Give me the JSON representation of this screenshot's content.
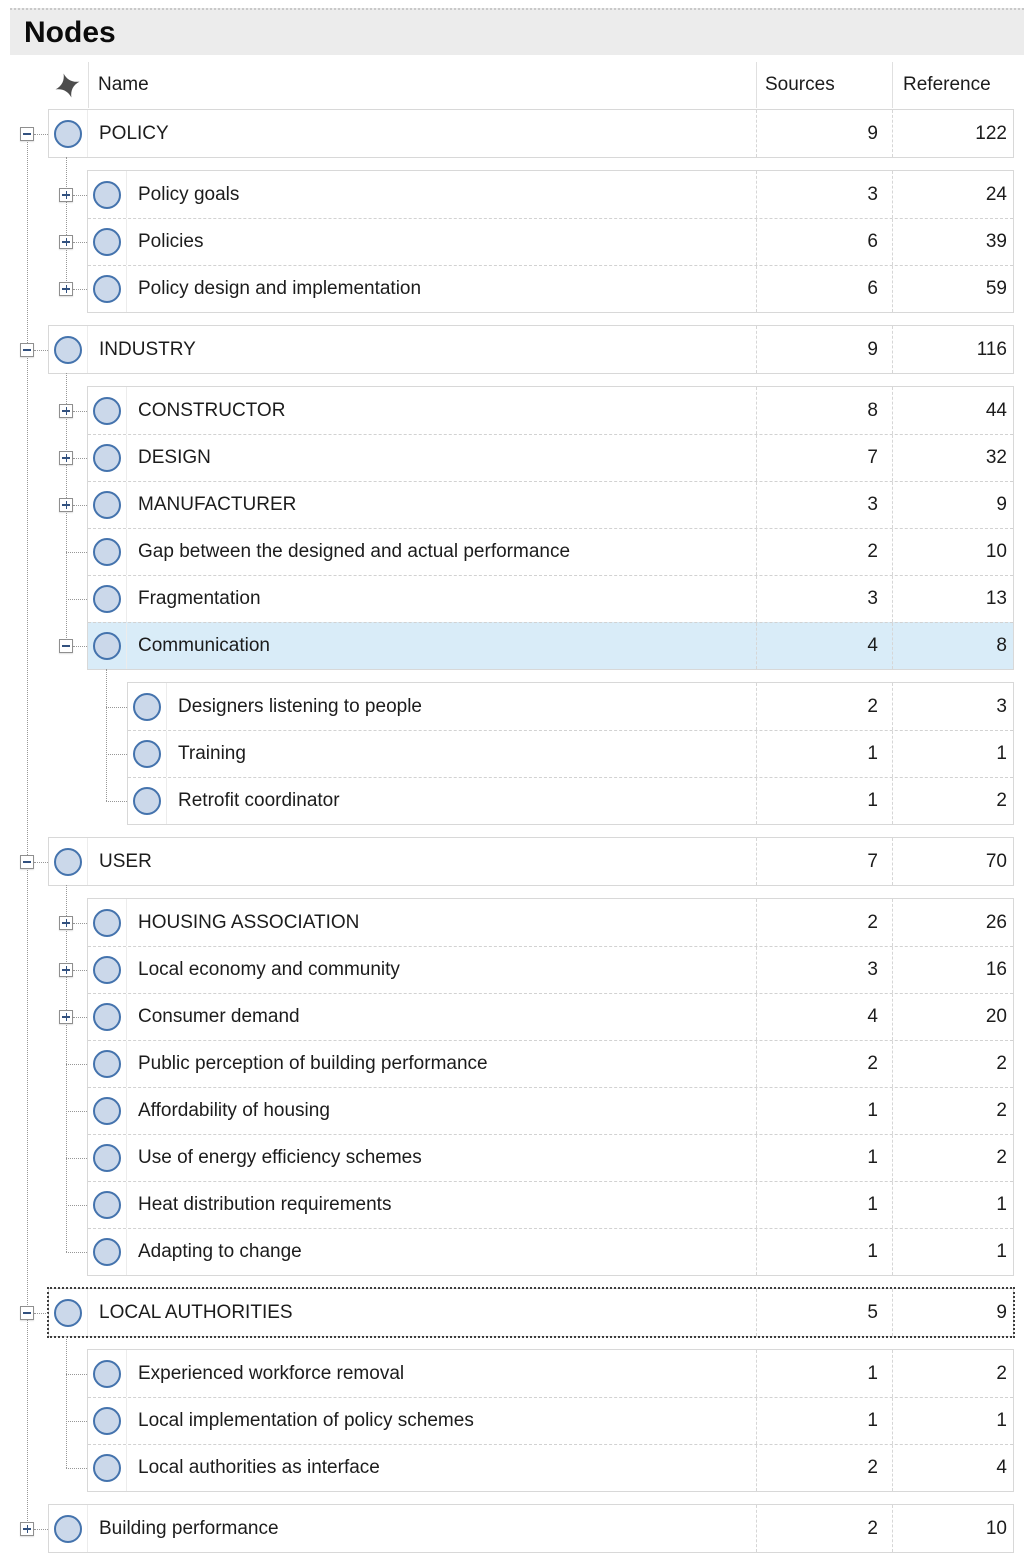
{
  "title": "Nodes",
  "columns": {
    "name": "Name",
    "sources": "Sources",
    "reference": "Reference"
  },
  "header_icon": "pin-star-icon",
  "colors": {
    "selected_row": "#d9ecf8",
    "node_fill": "#cbd8ea",
    "node_border": "#4473ad",
    "title_bg": "#ececec"
  },
  "rows": [
    {
      "name": "POLICY",
      "sources": 9,
      "reference": 122,
      "level": 1,
      "expander": "minus"
    },
    {
      "name": "Policy goals",
      "sources": 3,
      "reference": 24,
      "level": 2,
      "expander": "plus"
    },
    {
      "name": "Policies",
      "sources": 6,
      "reference": 39,
      "level": 2,
      "expander": "plus"
    },
    {
      "name": "Policy design and implementation",
      "sources": 6,
      "reference": 59,
      "level": 2,
      "expander": "plus"
    },
    {
      "name": "INDUSTRY",
      "sources": 9,
      "reference": 116,
      "level": 1,
      "expander": "minus"
    },
    {
      "name": "CONSTRUCTOR",
      "sources": 8,
      "reference": 44,
      "level": 2,
      "expander": "plus"
    },
    {
      "name": "DESIGN",
      "sources": 7,
      "reference": 32,
      "level": 2,
      "expander": "plus"
    },
    {
      "name": "MANUFACTURER",
      "sources": 3,
      "reference": 9,
      "level": 2,
      "expander": "plus"
    },
    {
      "name": "Gap between the designed and actual performance",
      "sources": 2,
      "reference": 10,
      "level": 2,
      "expander": "none"
    },
    {
      "name": "Fragmentation",
      "sources": 3,
      "reference": 13,
      "level": 2,
      "expander": "none"
    },
    {
      "name": "Communication",
      "sources": 4,
      "reference": 8,
      "level": 2,
      "expander": "minus",
      "selected": true
    },
    {
      "name": "Designers listening to people",
      "sources": 2,
      "reference": 3,
      "level": 3,
      "expander": "none"
    },
    {
      "name": "Training",
      "sources": 1,
      "reference": 1,
      "level": 3,
      "expander": "none"
    },
    {
      "name": "Retrofit coordinator",
      "sources": 1,
      "reference": 2,
      "level": 3,
      "expander": "none"
    },
    {
      "name": "USER",
      "sources": 7,
      "reference": 70,
      "level": 1,
      "expander": "minus"
    },
    {
      "name": "HOUSING ASSOCIATION",
      "sources": 2,
      "reference": 26,
      "level": 2,
      "expander": "plus"
    },
    {
      "name": "Local economy and community",
      "sources": 3,
      "reference": 16,
      "level": 2,
      "expander": "plus"
    },
    {
      "name": "Consumer demand",
      "sources": 4,
      "reference": 20,
      "level": 2,
      "expander": "plus"
    },
    {
      "name": "Public perception of building performance",
      "sources": 2,
      "reference": 2,
      "level": 2,
      "expander": "none"
    },
    {
      "name": "Affordability of housing",
      "sources": 1,
      "reference": 2,
      "level": 2,
      "expander": "none"
    },
    {
      "name": "Use of energy efficiency schemes",
      "sources": 1,
      "reference": 2,
      "level": 2,
      "expander": "none"
    },
    {
      "name": "Heat distribution requirements",
      "sources": 1,
      "reference": 1,
      "level": 2,
      "expander": "none"
    },
    {
      "name": "Adapting to change",
      "sources": 1,
      "reference": 1,
      "level": 2,
      "expander": "none"
    },
    {
      "name": "LOCAL AUTHORITIES",
      "sources": 5,
      "reference": 9,
      "level": 1,
      "expander": "minus",
      "focused": true
    },
    {
      "name": "Experienced workforce removal",
      "sources": 1,
      "reference": 2,
      "level": 2,
      "expander": "none"
    },
    {
      "name": "Local implementation of policy schemes",
      "sources": 1,
      "reference": 1,
      "level": 2,
      "expander": "none"
    },
    {
      "name": "Local authorities as interface",
      "sources": 2,
      "reference": 4,
      "level": 2,
      "expander": "none"
    },
    {
      "name": "Building performance",
      "sources": 2,
      "reference": 10,
      "level": 1,
      "expander": "plus"
    }
  ]
}
